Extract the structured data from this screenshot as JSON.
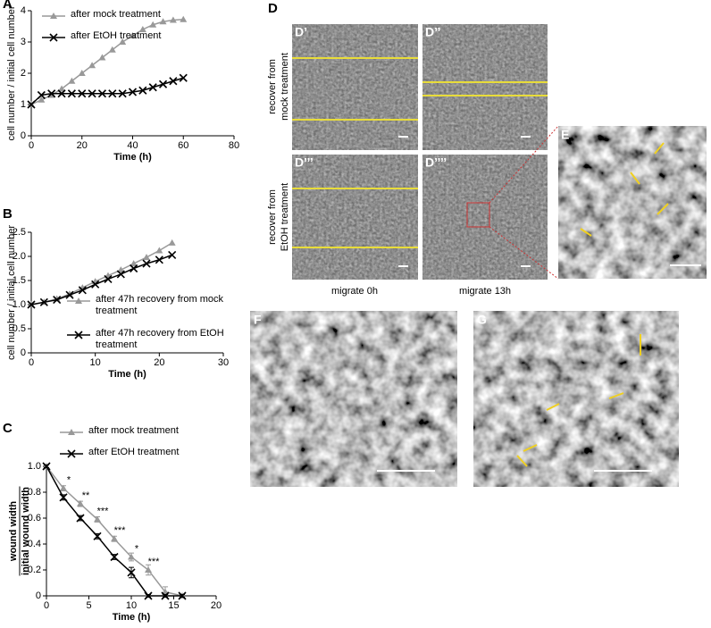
{
  "chart_data": [
    {
      "type": "line",
      "panel": "A",
      "xlabel": "Time (h)",
      "ylabel": "cell number / initial cell number",
      "x": [
        0,
        4,
        8,
        12,
        16,
        20,
        24,
        28,
        32,
        36,
        40,
        44,
        48,
        52,
        56,
        60
      ],
      "series": [
        {
          "name": "after mock treatment",
          "color": "#999999",
          "marker": "triangle",
          "values": [
            1.0,
            1.15,
            1.3,
            1.5,
            1.75,
            2.0,
            2.25,
            2.5,
            2.75,
            3.0,
            3.2,
            3.4,
            3.55,
            3.65,
            3.7,
            3.72
          ]
        },
        {
          "name": "after EtOH treatment",
          "color": "#000000",
          "marker": "x",
          "values": [
            1.0,
            1.3,
            1.35,
            1.35,
            1.35,
            1.35,
            1.35,
            1.35,
            1.35,
            1.35,
            1.4,
            1.45,
            1.55,
            1.65,
            1.75,
            1.85
          ]
        }
      ],
      "xlim": [
        0,
        80
      ],
      "xticks": [
        0,
        20,
        40,
        60,
        80
      ],
      "ylim": [
        0,
        4
      ],
      "yticks": [
        0,
        1,
        2,
        3,
        4
      ],
      "legend": "upper left"
    },
    {
      "type": "line",
      "panel": "B",
      "xlabel": "Time (h)",
      "ylabel": "cell number / initial cell number",
      "x": [
        0,
        2,
        4,
        6,
        8,
        10,
        12,
        14,
        16,
        18,
        20,
        22
      ],
      "series": [
        {
          "name": "after 47h recovery from mock treatment",
          "color": "#999999",
          "marker": "triangle",
          "values": [
            1.0,
            1.05,
            1.12,
            1.22,
            1.35,
            1.48,
            1.6,
            1.72,
            1.85,
            1.98,
            2.12,
            2.28
          ]
        },
        {
          "name": "after 47h recovery from EtOH treatment",
          "color": "#000000",
          "marker": "x",
          "values": [
            1.0,
            1.05,
            1.1,
            1.2,
            1.3,
            1.42,
            1.53,
            1.63,
            1.75,
            1.85,
            1.93,
            2.03
          ]
        }
      ],
      "xlim": [
        0,
        30
      ],
      "xticks": [
        0,
        10,
        20,
        30
      ],
      "ylim": [
        0,
        2.5
      ],
      "yticks": [
        0,
        0.5,
        {
          "value": 1,
          "label": "1.0"
        },
        1.5,
        {
          "value": 2,
          "label": "2.0"
        },
        2.5
      ],
      "legend": "lower right"
    },
    {
      "type": "line",
      "panel": "C",
      "xlabel": "Time (h)",
      "ylabel": [
        "wound width",
        "initial wound width"
      ],
      "x": [
        0,
        2,
        4,
        6,
        8,
        10,
        12,
        14,
        16
      ],
      "series": [
        {
          "name": "after mock treatment",
          "color": "#999999",
          "marker": "triangle",
          "values": [
            1.0,
            0.83,
            0.71,
            0.59,
            0.44,
            0.3,
            0.2,
            0.03,
            0.0
          ],
          "errors": [
            0.01,
            0.02,
            0.02,
            0.02,
            0.02,
            0.03,
            0.04,
            0.04,
            0.01
          ]
        },
        {
          "name": "after EtOH treatment",
          "color": "#000000",
          "marker": "x",
          "values": [
            1.0,
            0.76,
            0.6,
            0.46,
            0.3,
            0.18,
            0.0,
            0.0,
            0.0
          ],
          "errors": [
            0.01,
            0.02,
            0.02,
            0.02,
            0.02,
            0.04,
            0.01,
            0.01,
            0.01
          ]
        }
      ],
      "significance": [
        null,
        "*",
        "**",
        "***",
        "***",
        "*",
        "***",
        null,
        null
      ],
      "xlim": [
        0,
        20
      ],
      "xticks": [
        0,
        5,
        10,
        15,
        20
      ],
      "ylim": [
        0,
        1
      ],
      "yticks": [
        0,
        0.2,
        0.4,
        0.6,
        0.8,
        {
          "value": 1,
          "label": "1.0"
        }
      ],
      "legend": "upper right"
    }
  ],
  "images": {
    "panel": "D",
    "d1": "D’",
    "d2": "D’’",
    "d3": "D’’’",
    "d4": "D’’’’",
    "e": "E",
    "f": "F",
    "g": "G",
    "row1": [
      "recover from",
      "mock treatment"
    ],
    "row2": [
      "recover from",
      "EtOH treatment"
    ],
    "col1": "migrate 0h",
    "col2": "migrate 13h"
  }
}
